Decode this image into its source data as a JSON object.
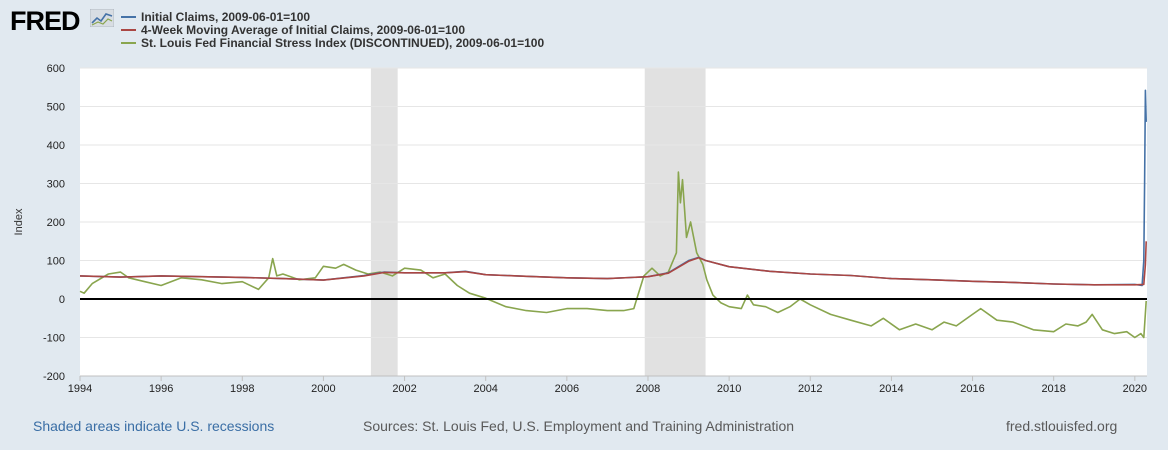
{
  "brand": {
    "logo_text": "FRED",
    "logo_icon": "fred-chart-icon"
  },
  "legend": [
    {
      "label": "Initial Claims, 2009-06-01=100",
      "color": "#4572a7"
    },
    {
      "label": "4-Week Moving Average of Initial Claims, 2009-06-01=100",
      "color": "#aa4643"
    },
    {
      "label": "St. Louis Fed Financial Stress Index (DISCONTINUED), 2009-06-01=100",
      "color": "#89a54e"
    }
  ],
  "footer": {
    "recessions_note": "Shaded areas indicate U.S. recessions",
    "sources": "Sources: St. Louis Fed, U.S. Employment and Training Administration",
    "site": "fred.stlouisfed.org"
  },
  "chart_data": {
    "type": "line",
    "ylabel": "Index",
    "xlim": [
      1994.0,
      2020.3
    ],
    "ylim": [
      -200,
      600
    ],
    "x_ticks": [
      1994,
      1996,
      1998,
      2000,
      2002,
      2004,
      2006,
      2008,
      2010,
      2012,
      2014,
      2016,
      2018,
      2020
    ],
    "y_ticks": [
      -200,
      -100,
      0,
      100,
      200,
      300,
      400,
      500,
      600
    ],
    "grid": true,
    "zero_line": true,
    "recessions": [
      [
        2001.17,
        2001.83
      ],
      [
        2007.92,
        2009.42
      ]
    ],
    "series": [
      {
        "name": "Initial Claims, 2009-06-01=100",
        "color": "#4572a7",
        "x": [
          1994.0,
          1995.0,
          1996.0,
          1997.0,
          1998.0,
          1999.0,
          2000.0,
          2001.0,
          2001.5,
          2002.0,
          2003.0,
          2003.5,
          2004.0,
          2005.0,
          2006.0,
          2007.0,
          2008.0,
          2008.5,
          2009.0,
          2009.25,
          2009.42,
          2010.0,
          2011.0,
          2012.0,
          2013.0,
          2014.0,
          2015.0,
          2016.0,
          2017.0,
          2018.0,
          2019.0,
          2020.0,
          2020.18,
          2020.22,
          2020.24,
          2020.26,
          2020.28
        ],
        "y": [
          60,
          57,
          60,
          58,
          56,
          53,
          49,
          61,
          70,
          68,
          68,
          72,
          63,
          59,
          55,
          53,
          58,
          68,
          100,
          108,
          100,
          84,
          72,
          65,
          61,
          53,
          50,
          46,
          43,
          39,
          37,
          38,
          35,
          100,
          300,
          542,
          460
        ]
      },
      {
        "name": "4-Week Moving Average of Initial Claims, 2009-06-01=100",
        "color": "#aa4643",
        "x": [
          1994.0,
          1995.0,
          1996.0,
          1997.0,
          1998.0,
          1999.0,
          2000.0,
          2001.0,
          2001.5,
          2002.0,
          2003.0,
          2003.5,
          2004.0,
          2005.0,
          2006.0,
          2007.0,
          2008.0,
          2008.5,
          2009.0,
          2009.25,
          2009.42,
          2010.0,
          2011.0,
          2012.0,
          2013.0,
          2014.0,
          2015.0,
          2016.0,
          2017.0,
          2018.0,
          2019.0,
          2020.0,
          2020.22,
          2020.26,
          2020.28
        ],
        "y": [
          60,
          57,
          60,
          58,
          56,
          53,
          49,
          60,
          69,
          68,
          68,
          71,
          63,
          59,
          55,
          53,
          58,
          67,
          98,
          107,
          100,
          84,
          72,
          65,
          61,
          53,
          50,
          46,
          43,
          39,
          37,
          37,
          38,
          90,
          150
        ]
      },
      {
        "name": "St. Louis Fed Financial Stress Index (DISCONTINUED), 2009-06-01=100",
        "color": "#89a54e",
        "x": [
          1994.0,
          1994.1,
          1994.3,
          1994.7,
          1995.0,
          1995.2,
          1995.6,
          1996.0,
          1996.5,
          1997.0,
          1997.5,
          1998.0,
          1998.4,
          1998.65,
          1998.75,
          1998.85,
          1999.0,
          1999.4,
          1999.8,
          2000.0,
          2000.3,
          2000.5,
          2000.8,
          2001.1,
          2001.4,
          2001.7,
          2002.0,
          2002.4,
          2002.7,
          2003.0,
          2003.3,
          2003.6,
          2004.0,
          2004.5,
          2005.0,
          2005.5,
          2006.0,
          2006.5,
          2007.0,
          2007.4,
          2007.65,
          2007.9,
          2008.1,
          2008.3,
          2008.5,
          2008.7,
          2008.75,
          2008.8,
          2008.85,
          2008.95,
          2009.05,
          2009.2,
          2009.35,
          2009.45,
          2009.6,
          2009.8,
          2010.0,
          2010.3,
          2010.45,
          2010.6,
          2010.9,
          2011.2,
          2011.5,
          2011.75,
          2012.0,
          2012.5,
          2013.0,
          2013.5,
          2013.8,
          2014.2,
          2014.6,
          2015.0,
          2015.3,
          2015.6,
          2016.0,
          2016.2,
          2016.6,
          2017.0,
          2017.5,
          2018.0,
          2018.3,
          2018.6,
          2018.8,
          2018.95,
          2019.2,
          2019.5,
          2019.8,
          2020.0,
          2020.15,
          2020.22,
          2020.28
        ],
        "y": [
          20,
          15,
          40,
          65,
          70,
          55,
          45,
          35,
          55,
          50,
          40,
          45,
          25,
          55,
          105,
          60,
          65,
          50,
          55,
          85,
          80,
          90,
          75,
          65,
          70,
          60,
          80,
          75,
          55,
          65,
          35,
          15,
          2,
          -20,
          -30,
          -35,
          -25,
          -25,
          -30,
          -30,
          -25,
          60,
          80,
          60,
          70,
          120,
          330,
          250,
          310,
          160,
          200,
          120,
          90,
          50,
          10,
          -10,
          -20,
          -25,
          10,
          -15,
          -20,
          -35,
          -20,
          0,
          -15,
          -40,
          -55,
          -70,
          -50,
          -80,
          -65,
          -80,
          -60,
          -70,
          -40,
          -25,
          -55,
          -60,
          -80,
          -85,
          -65,
          -70,
          -60,
          -40,
          -80,
          -90,
          -85,
          -100,
          -90,
          -100,
          -5
        ]
      }
    ]
  }
}
